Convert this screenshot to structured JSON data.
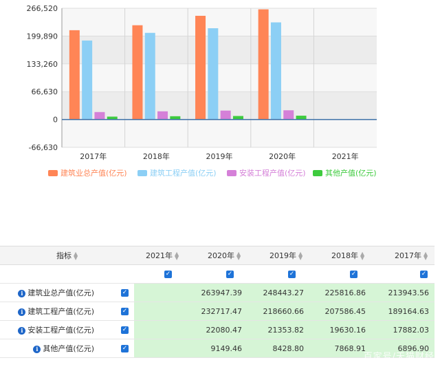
{
  "chart_data": {
    "type": "bar",
    "categories": [
      "2017年",
      "2018年",
      "2019年",
      "2020年",
      "2021年"
    ],
    "series": [
      {
        "name": "建筑业总产值(亿元)",
        "color": "#ff8556",
        "values": [
          213943.56,
          225816.86,
          248443.27,
          263947.39,
          null
        ]
      },
      {
        "name": "建筑工程产值(亿元)",
        "color": "#8ccff5",
        "values": [
          189164.63,
          207586.45,
          218660.66,
          232717.47,
          null
        ]
      },
      {
        "name": "安装工程产值(亿元)",
        "color": "#d580d8",
        "values": [
          17882.03,
          19630.16,
          21353.82,
          22080.47,
          null
        ]
      },
      {
        "name": "其他产值(亿元)",
        "color": "#3ecb3e",
        "values": [
          6896.9,
          7868.91,
          8428.8,
          9149.46,
          null
        ]
      }
    ],
    "yticks": [
      "266,520",
      "199,890",
      "133,260",
      "66,630",
      "0",
      "-66,630"
    ],
    "ylim": [
      -66630,
      266520
    ],
    "grid": true,
    "legend_position": "bottom"
  },
  "table": {
    "header_indicator": "指标",
    "year_headers": [
      "2021年",
      "2020年",
      "2019年",
      "2018年",
      "2017年"
    ],
    "rows": [
      {
        "name": "建筑业总产值(亿元)",
        "values": [
          "",
          "263947.39",
          "248443.27",
          "225816.86",
          "213943.56"
        ]
      },
      {
        "name": "建筑工程产值(亿元)",
        "values": [
          "",
          "232717.47",
          "218660.66",
          "207586.45",
          "189164.63"
        ]
      },
      {
        "name": "安装工程产值(亿元)",
        "values": [
          "",
          "22080.47",
          "21353.82",
          "19630.16",
          "17882.03"
        ]
      },
      {
        "name": "其他产值(亿元)",
        "values": [
          "",
          "9149.46",
          "8428.80",
          "7868.91",
          "6896.90"
        ]
      }
    ]
  },
  "watermark": "百家号/天猫财经"
}
